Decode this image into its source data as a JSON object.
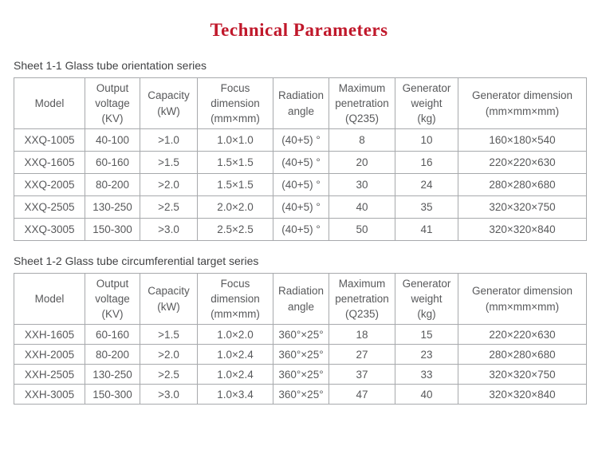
{
  "page": {
    "title": "Technical Parameters",
    "title_color": "#c0182b"
  },
  "sheet1": {
    "caption": "Sheet 1-1 Glass tube orientation series",
    "columns": [
      "Model",
      "Output\nvoltage\n(KV)",
      "Capacity\n(kW)",
      "Focus\ndimension\n(mm×mm)",
      "Radiation\nangle",
      "Maximum\npenetration\n(Q235)",
      "Generator\nweight\n(kg)",
      "Generator dimension\n(mm×mm×mm)"
    ],
    "rows": [
      [
        "XXQ-1005",
        "40-100",
        ">1.0",
        "1.0×1.0",
        "(40+5) °",
        "8",
        "10",
        "160×180×540"
      ],
      [
        "XXQ-1605",
        "60-160",
        ">1.5",
        "1.5×1.5",
        "(40+5) °",
        "20",
        "16",
        "220×220×630"
      ],
      [
        "XXQ-2005",
        "80-200",
        ">2.0",
        "1.5×1.5",
        "(40+5) °",
        "30",
        "24",
        "280×280×680"
      ],
      [
        "XXQ-2505",
        "130-250",
        ">2.5",
        "2.0×2.0",
        "(40+5) °",
        "40",
        "35",
        "320×320×750"
      ],
      [
        "XXQ-3005",
        "150-300",
        ">3.0",
        "2.5×2.5",
        "(40+5) °",
        "50",
        "41",
        "320×320×840"
      ]
    ]
  },
  "sheet2": {
    "caption": "Sheet 1-2 Glass tube circumferential target series",
    "columns": [
      "Model",
      "Output\nvoltage\n(KV)",
      "Capacity\n(kW)",
      "Focus\ndimension\n(mm×mm)",
      "Radiation\nangle",
      "Maximum\npenetration\n(Q235)",
      "Generator\nweight\n(kg)",
      "Generator dimension\n(mm×mm×mm)"
    ],
    "rows": [
      [
        "XXH-1605",
        "60-160",
        ">1.5",
        "1.0×2.0",
        "360°×25°",
        "18",
        "15",
        "220×220×630"
      ],
      [
        "XXH-2005",
        "80-200",
        ">2.0",
        "1.0×2.4",
        "360°×25°",
        "27",
        "23",
        "280×280×680"
      ],
      [
        "XXH-2505",
        "130-250",
        ">2.5",
        "1.0×2.4",
        "360°×25°",
        "37",
        "33",
        "320×320×750"
      ],
      [
        "XXH-3005",
        "150-300",
        ">3.0",
        "1.0×3.4",
        "360°×25°",
        "47",
        "40",
        "320×320×840"
      ]
    ]
  }
}
